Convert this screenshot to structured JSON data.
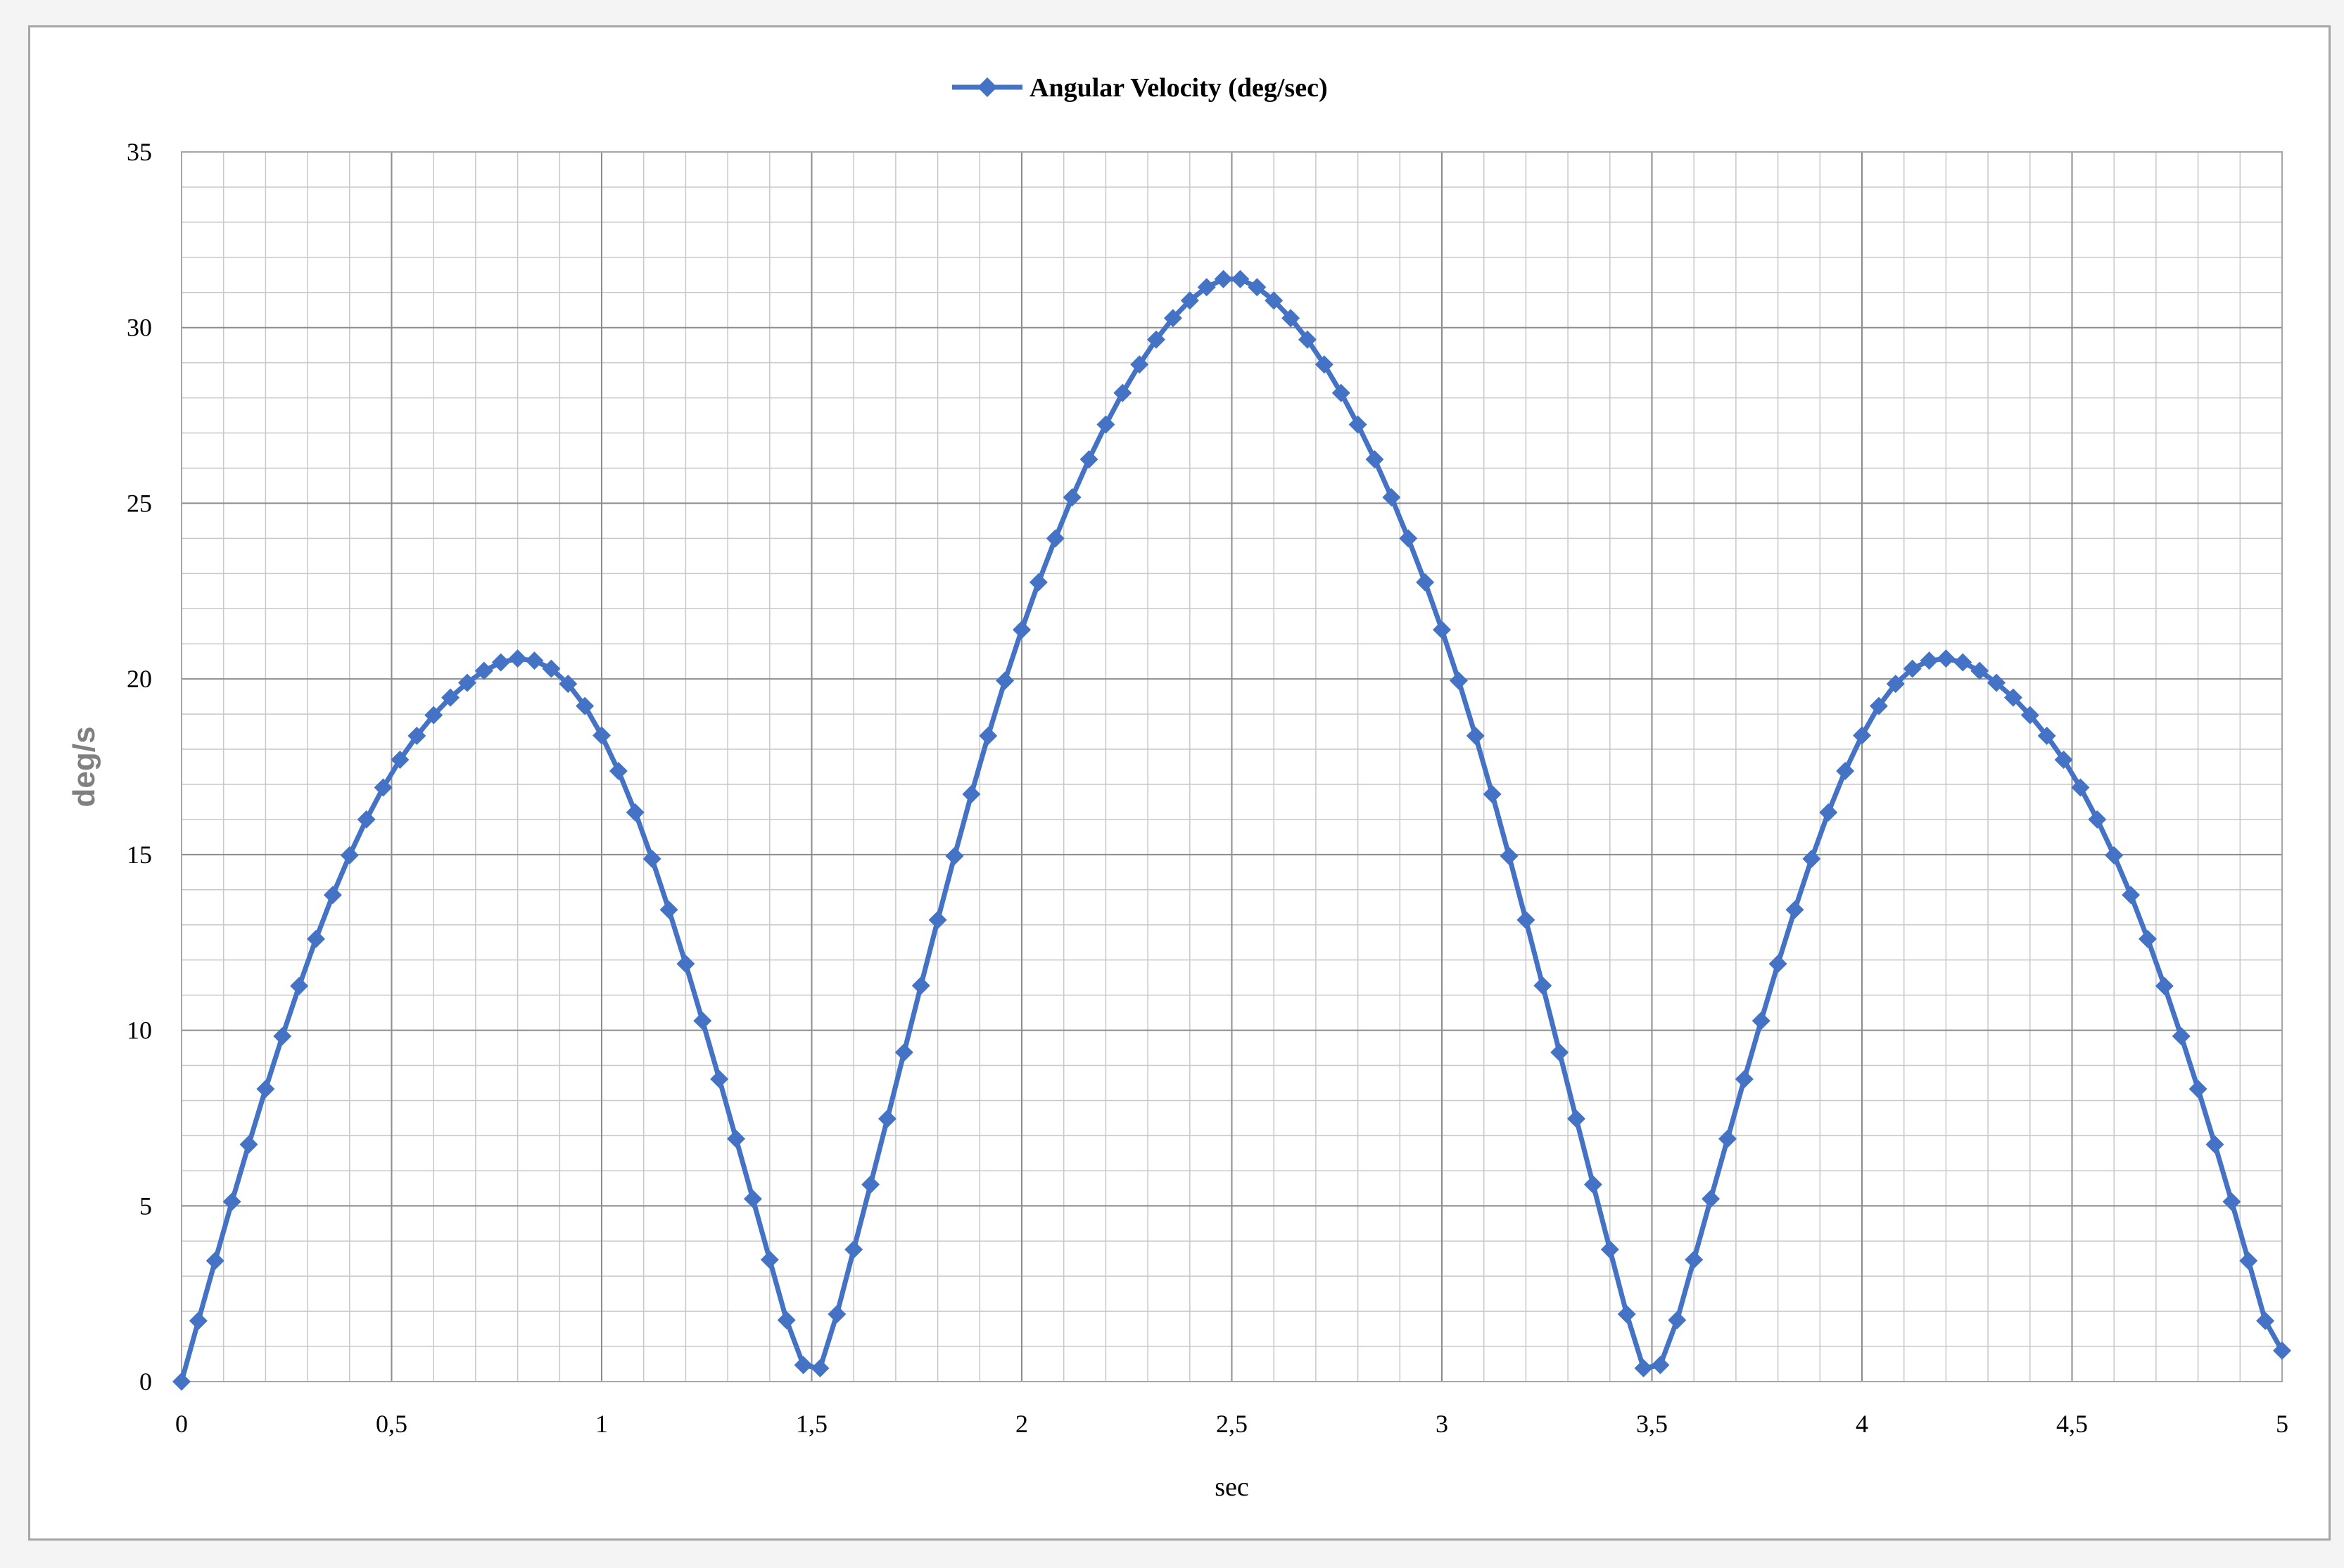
{
  "chart_data": {
    "type": "line",
    "title": "",
    "xlabel": "sec",
    "ylabel": "deg/s",
    "xlim": [
      0,
      5
    ],
    "ylim": [
      0,
      35
    ],
    "x_ticks": [
      "0",
      "0,5",
      "1",
      "1,5",
      "2",
      "2,5",
      "3",
      "3,5",
      "4",
      "4,5",
      "5"
    ],
    "y_ticks": [
      "0",
      "5",
      "10",
      "15",
      "20",
      "25",
      "30",
      "35"
    ],
    "grid": true,
    "legend": "top-center",
    "series": [
      {
        "name": "Angular Velocity (deg/sec)",
        "color": "#4472c4",
        "marker": "diamond",
        "x": [
          0,
          0.04,
          0.08,
          0.12,
          0.16,
          0.2,
          0.24,
          0.28,
          0.32,
          0.36,
          0.4,
          0.44,
          0.48,
          0.52,
          0.56,
          0.6,
          0.64,
          0.68,
          0.72,
          0.76,
          0.8,
          0.84,
          0.88,
          0.92,
          0.96,
          1.0,
          1.04,
          1.08,
          1.12,
          1.16,
          1.2,
          1.24,
          1.28,
          1.32,
          1.36,
          1.4,
          1.44,
          1.48,
          1.52,
          1.56,
          1.6,
          1.64,
          1.68,
          1.72,
          1.76,
          1.8,
          1.84,
          1.88,
          1.92,
          1.96,
          2.0,
          2.04,
          2.08,
          2.12,
          2.16,
          2.2,
          2.24,
          2.28,
          2.32,
          2.36,
          2.4,
          2.44,
          2.48,
          2.52,
          2.56,
          2.6,
          2.64,
          2.68,
          2.72,
          2.76,
          2.8,
          2.84,
          2.88,
          2.92,
          2.96,
          3.0,
          3.04,
          3.08,
          3.12,
          3.16,
          3.2,
          3.24,
          3.28,
          3.32,
          3.36,
          3.4,
          3.44,
          3.48,
          3.52,
          3.56,
          3.6,
          3.64,
          3.68,
          3.72,
          3.76,
          3.8,
          3.84,
          3.88,
          3.92,
          3.96,
          4.0,
          4.04,
          4.08,
          4.12,
          4.16,
          4.2,
          4.24,
          4.28,
          4.32,
          4.36,
          4.4,
          4.44,
          4.48,
          4.52,
          4.56,
          4.6,
          4.64,
          4.68,
          4.72,
          4.76,
          4.8,
          4.84,
          4.88,
          4.92,
          4.96,
          5.0
        ],
        "values": [
          0,
          1.73,
          3.44,
          5.12,
          6.75,
          8.33,
          9.83,
          11.26,
          12.6,
          13.85,
          14.98,
          16.0,
          16.91,
          17.7,
          18.38,
          18.97,
          19.47,
          19.89,
          20.23,
          20.47,
          20.58,
          20.52,
          20.29,
          19.86,
          19.23,
          18.39,
          17.38,
          16.2,
          14.88,
          13.43,
          11.89,
          10.27,
          8.61,
          6.91,
          5.2,
          3.47,
          1.75,
          0.47,
          0.38,
          1.92,
          3.76,
          5.61,
          7.48,
          9.37,
          11.27,
          13.14,
          14.96,
          16.72,
          18.38,
          19.95,
          21.4,
          22.75,
          24.0,
          25.17,
          26.25,
          27.24,
          28.14,
          28.95,
          29.66,
          30.27,
          30.77,
          31.15,
          31.38,
          31.38,
          31.15,
          30.77,
          30.27,
          29.66,
          28.95,
          28.14,
          27.24,
          26.25,
          25.17,
          24.0,
          22.75,
          21.4,
          19.95,
          18.38,
          16.72,
          14.96,
          13.14,
          11.27,
          9.37,
          7.48,
          5.61,
          3.76,
          1.92,
          0.38,
          0.47,
          1.75,
          3.47,
          5.2,
          6.91,
          8.61,
          10.27,
          11.89,
          13.43,
          14.88,
          16.2,
          17.38,
          18.39,
          19.23,
          19.86,
          20.29,
          20.52,
          20.58,
          20.47,
          20.23,
          19.89,
          19.47,
          18.97,
          18.38,
          17.7,
          16.91,
          16.0,
          14.98,
          13.85,
          12.6,
          11.26,
          9.83,
          8.33,
          6.75,
          5.12,
          3.44,
          1.73,
          0.88
        ]
      }
    ]
  }
}
